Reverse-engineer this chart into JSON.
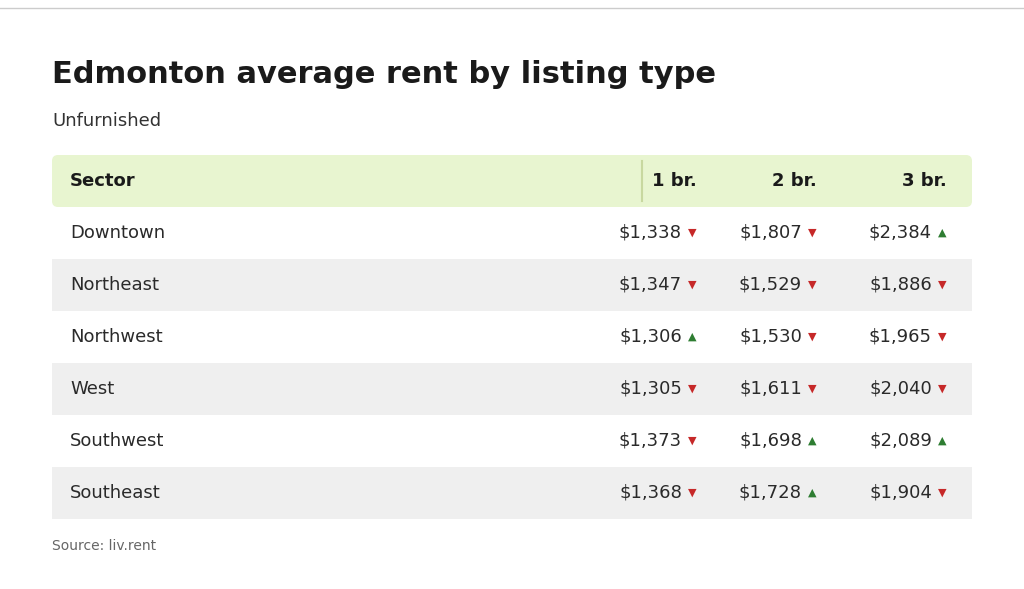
{
  "title": "Edmonton average rent by listing type",
  "subtitle": "Unfurnished",
  "source": "Source: liv.rent",
  "columns": [
    "Sector",
    "1 br.",
    "2 br.",
    "3 br."
  ],
  "rows": [
    {
      "sector": "Downtown",
      "br1": "$1,338",
      "br1_up": false,
      "br2": "$1,807",
      "br2_up": false,
      "br3": "$2,384",
      "br3_up": true
    },
    {
      "sector": "Northeast",
      "br1": "$1,347",
      "br1_up": false,
      "br2": "$1,529",
      "br2_up": false,
      "br3": "$1,886",
      "br3_up": false
    },
    {
      "sector": "Northwest",
      "br1": "$1,306",
      "br1_up": true,
      "br2": "$1,530",
      "br2_up": false,
      "br3": "$1,965",
      "br3_up": false
    },
    {
      "sector": "West",
      "br1": "$1,305",
      "br1_up": false,
      "br2": "$1,611",
      "br2_up": false,
      "br3": "$2,040",
      "br3_up": false
    },
    {
      "sector": "Southwest",
      "br1": "$1,373",
      "br1_up": false,
      "br2": "$1,698",
      "br2_up": true,
      "br3": "$2,089",
      "br3_up": true
    },
    {
      "sector": "Southeast",
      "br1": "$1,368",
      "br1_up": false,
      "br2": "$1,728",
      "br2_up": true,
      "br3": "$1,904",
      "br3_up": false
    }
  ],
  "header_bg": "#e8f5d0",
  "row_bg_odd": "#ffffff",
  "row_bg_even": "#efefef",
  "up_color": "#2e7d32",
  "down_color": "#c62828",
  "separator_color": "#c8d8a0",
  "top_line_color": "#cccccc",
  "title_fontsize": 22,
  "subtitle_fontsize": 13,
  "header_fontsize": 13,
  "cell_fontsize": 13,
  "source_fontsize": 10,
  "bg_color": "#ffffff",
  "fig_width": 10.24,
  "fig_height": 5.89,
  "dpi": 100
}
